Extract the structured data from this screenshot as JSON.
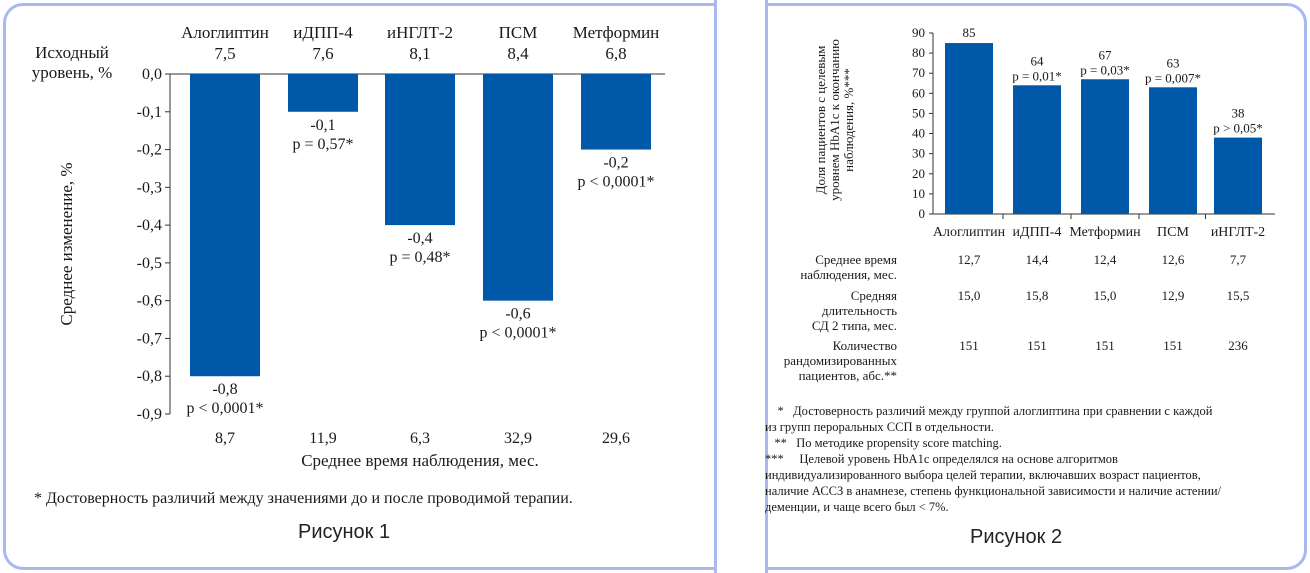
{
  "figure1": {
    "caption": "Рисунок 1",
    "baseline_label": [
      "Исходный",
      "уровень, %"
    ],
    "ylabel": "Среднее изменение, %",
    "xlabel": "Среднее время наблюдения, мес.",
    "footnote": "* Достоверность различий между значениями до и после проводимой терапии."
  },
  "figure2": {
    "caption": "Рисунок 2",
    "ylabel": [
      "Доля пациентов с целевым",
      "уровнем HbA1c к окончанию",
      "наблюдения, %***"
    ],
    "table_rows": [
      {
        "label": [
          "Среднее время",
          "наблюдения, мес."
        ],
        "values": [
          "12,7",
          "14,4",
          "12,4",
          "12,6",
          "7,7"
        ]
      },
      {
        "label": [
          "Средняя",
          "длительность",
          "СД 2 типа, мес."
        ],
        "values": [
          "15,0",
          "15,8",
          "15,0",
          "12,9",
          "15,5"
        ]
      },
      {
        "label": [
          "Количество",
          "рандомизированных",
          "пациентов, абс.**"
        ],
        "values": [
          "151",
          "151",
          "151",
          "151",
          "236"
        ]
      }
    ],
    "notes": [
      "    *   Достоверность различий между группой алоглиптина при сравнении с каждой",
      "из групп пероральных ССП в отдельности.",
      "   **   По методике propensity score matching.",
      "***     Целевой уровень HbA1c определялся на основе алгоритмов",
      "индивидуализированного выбора целей терапии, включавших возраст пациентов,",
      "наличие АССЗ в анамнезе, степень функциональной зависимости и наличие астении/",
      "деменции, и чаще всего был < 7%."
    ]
  },
  "colors": {
    "bar": "#0058a8",
    "frame": "#a9b9ee"
  },
  "chart_data": [
    {
      "type": "bar",
      "categories": [
        "Алоглиптин",
        "иДПП-4",
        "иНГЛТ-2",
        "ПСМ",
        "Метформин"
      ],
      "baseline": [
        "7,5",
        "7,6",
        "8,1",
        "8,4",
        "6,8"
      ],
      "values": [
        -0.8,
        -0.1,
        -0.4,
        -0.6,
        -0.2
      ],
      "value_labels": [
        "-0,8",
        "-0,1",
        "-0,4",
        "-0,6",
        "-0,2"
      ],
      "p_values": [
        "p < 0,0001*",
        "p = 0,57*",
        "p = 0,48*",
        "p < 0,0001*",
        "p < 0,0001*"
      ],
      "follow_up": [
        "8,7",
        "11,9",
        "6,3",
        "32,9",
        "29,6"
      ],
      "ylim": [
        -0.9,
        0
      ],
      "yticks": [
        "0,0",
        "-0,1",
        "-0,2",
        "-0,3",
        "-0,4",
        "-0,5",
        "-0,6",
        "-0,7",
        "-0,8",
        "-0,9"
      ],
      "ylabel": "Среднее изменение, %",
      "xlabel": "Среднее время наблюдения, мес."
    },
    {
      "type": "bar",
      "categories": [
        "Алоглиптин",
        "иДПП-4",
        "Метформин",
        "ПСМ",
        "иНГЛТ-2"
      ],
      "values": [
        85,
        64,
        67,
        63,
        38
      ],
      "value_labels": [
        "85",
        "64",
        "67",
        "63",
        "38"
      ],
      "p_values": [
        "",
        "p = 0,01*",
        "p = 0,03*",
        "p = 0,007*",
        "p > 0,05*"
      ],
      "ylim": [
        0,
        90
      ],
      "yticks": [
        "0",
        "10",
        "20",
        "30",
        "40",
        "50",
        "60",
        "70",
        "80",
        "90"
      ],
      "ylabel": "Доля пациентов с целевым уровнем HbA1c к окончанию наблюдения, %***"
    }
  ]
}
